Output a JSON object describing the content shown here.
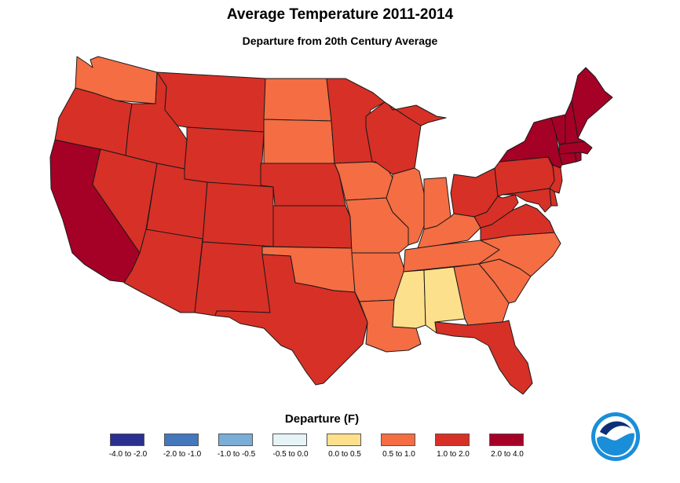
{
  "title": "Average Temperature 2011-2014",
  "subtitle": "Departure from 20th Century Average",
  "legend": {
    "title": "Departure (F)",
    "bins": [
      {
        "label": "-4.0 to -2.0",
        "color": "#2b2f8f"
      },
      {
        "label": "-2.0 to -1.0",
        "color": "#4477bb"
      },
      {
        "label": "-1.0 to -0.5",
        "color": "#7aaed6"
      },
      {
        "label": "-0.5 to 0.0",
        "color": "#e6f4f8"
      },
      {
        "label": "0.0 to 0.5",
        "color": "#fde08c"
      },
      {
        "label": "0.5 to 1.0",
        "color": "#f46d43"
      },
      {
        "label": "1.0 to 2.0",
        "color": "#d73027"
      },
      {
        "label": "2.0 to 4.0",
        "color": "#a50026"
      }
    ]
  },
  "states": {
    "WA": 5,
    "OR": 6,
    "CA": 7,
    "NV": 6,
    "ID": 6,
    "MT": 6,
    "WY": 6,
    "UT": 6,
    "AZ": 6,
    "CO": 6,
    "NM": 6,
    "ND": 5,
    "SD": 5,
    "NE": 6,
    "KS": 6,
    "OK": 5,
    "TX": 6,
    "MN": 6,
    "IA": 5,
    "MO": 5,
    "AR": 5,
    "LA": 5,
    "WI": 6,
    "IL": 5,
    "MI": 6,
    "IN": 5,
    "OH": 6,
    "KY": 5,
    "TN": 5,
    "MS": 4,
    "AL": 4,
    "GA": 5,
    "FL": 6,
    "SC": 5,
    "NC": 5,
    "VA": 6,
    "WV": 6,
    "PA": 6,
    "MD": 6,
    "DE": 6,
    "NJ": 6,
    "NY": 7,
    "CT": 7,
    "RI": 7,
    "MA": 7,
    "VT": 7,
    "NH": 7,
    "ME": 7
  },
  "logo": {
    "name": "noaa-logo"
  }
}
